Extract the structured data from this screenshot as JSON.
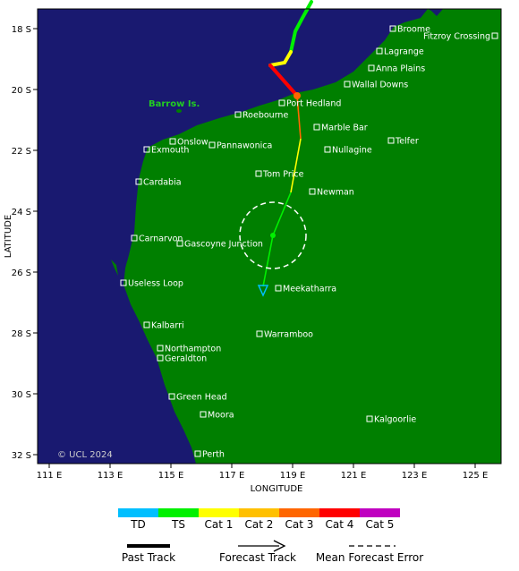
{
  "map": {
    "island_label": "Barrow Is.",
    "copyright": "© UCL 2024",
    "places": [
      "Broome",
      "Fitzroy Crossing",
      "Lagrange",
      "Anna Plains",
      "Wallal Downs",
      "Port Hedland",
      "Roebourne",
      "Marble Bar",
      "Telfer",
      "Onslow",
      "Exmouth",
      "Pannawonica",
      "Nullagine",
      "Tom Price",
      "Cardabia",
      "Newman",
      "Carnarvon",
      "Gascoyne Junction",
      "Useless Loop",
      "Meekatharra",
      "Kalbarri",
      "Warramboo",
      "Northampton",
      "Geraldton",
      "Green Head",
      "Moora",
      "Kalgoorlie",
      "Perth"
    ]
  },
  "axes": {
    "x_label": "LONGITUDE",
    "y_label": "LATITUDE",
    "x_ticks": [
      "111 E",
      "113 E",
      "115 E",
      "117 E",
      "119 E",
      "121 E",
      "123 E",
      "125 E"
    ],
    "y_ticks": [
      "18 S",
      "20 S",
      "22 S",
      "24 S",
      "26 S",
      "28 S",
      "30 S",
      "32 S"
    ]
  },
  "legend": {
    "categories": [
      {
        "label": "TD",
        "color": "#00bfff"
      },
      {
        "label": "TS",
        "color": "#00f000"
      },
      {
        "label": "Cat 1",
        "color": "#ffff00"
      },
      {
        "label": "Cat 2",
        "color": "#ffc000"
      },
      {
        "label": "Cat 3",
        "color": "#ff6600"
      },
      {
        "label": "Cat 4",
        "color": "#ff0000"
      },
      {
        "label": "Cat 5",
        "color": "#c000c0"
      }
    ],
    "past_track": "Past Track",
    "forecast_track": "Forecast Track",
    "error": "Mean Forecast Error"
  }
}
